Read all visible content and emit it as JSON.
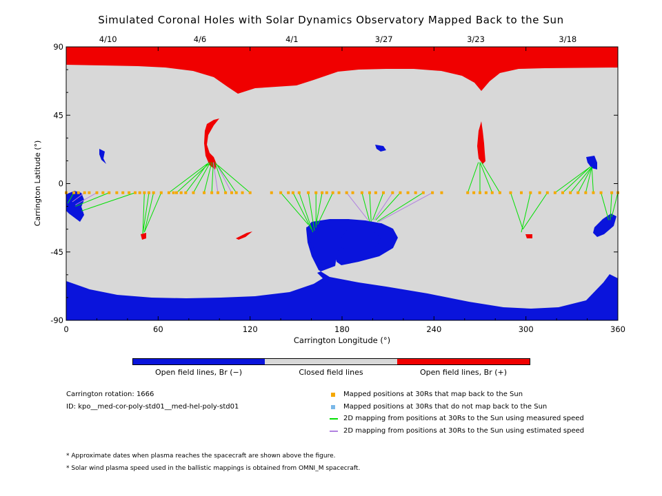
{
  "chart_data": {
    "type": "map",
    "title": "Simulated Coronal Holes with Solar Dynamics Observatory Mapped Back to the Sun",
    "xlabel": "Carrington Longitude (°)",
    "ylabel": "Carrington Latitude (°)",
    "xlim": [
      0,
      360
    ],
    "ylim": [
      -90,
      90
    ],
    "xticks": [
      0,
      60,
      120,
      180,
      240,
      300,
      360
    ],
    "yticks": [
      90,
      45,
      0,
      -45,
      -90
    ],
    "top_axis_dates": [
      {
        "label": "4/10",
        "lon": 30
      },
      {
        "label": "4/6",
        "lon": 90
      },
      {
        "label": "4/1",
        "lon": 150
      },
      {
        "label": "3/27",
        "lon": 210
      },
      {
        "label": "3/23",
        "lon": 270
      },
      {
        "label": "3/18",
        "lon": 330
      }
    ],
    "colors": {
      "open_negative": "#0a14dc",
      "closed": "#d8d8d8",
      "open_positive": "#f00000",
      "mapped": "#f5a800",
      "unmapped": "#7ab8e8",
      "measured": "#00e000",
      "estimated": "#b080e0"
    },
    "colorbar": [
      "Open field lines, Br (−)",
      "Closed field lines",
      "Open field lines, Br (+)"
    ],
    "mapped_positions_lat": -6,
    "mapped_positions_lon": [
      0,
      5,
      8,
      12,
      15,
      20,
      24,
      28,
      33,
      37,
      41,
      45,
      48,
      51,
      54,
      57,
      62,
      67,
      70,
      72,
      75,
      78,
      83,
      90,
      95,
      99,
      104,
      108,
      111,
      115,
      120,
      134,
      140,
      145,
      148,
      152,
      158,
      163,
      167,
      170,
      174,
      178,
      183,
      187,
      193,
      198,
      202,
      207,
      213,
      218,
      223,
      228,
      233,
      239,
      245,
      262,
      266,
      270,
      274,
      278,
      283,
      290,
      297,
      303,
      309,
      314,
      319,
      324,
      329,
      334,
      339,
      344,
      349,
      356,
      360
    ],
    "field_lines": [
      {
        "from": [
          12,
          -6
        ],
        "to": [
          4,
          -12
        ],
        "speed": "estimated"
      },
      {
        "from": [
          20,
          -6
        ],
        "to": [
          6,
          -14
        ],
        "speed": "estimated"
      },
      {
        "from": [
          28,
          -6
        ],
        "to": [
          6,
          -15
        ],
        "speed": "measured"
      },
      {
        "from": [
          45,
          -6
        ],
        "to": [
          10,
          -18
        ],
        "speed": "measured"
      },
      {
        "from": [
          5,
          -6
        ],
        "to": [
          1,
          -13
        ],
        "speed": "measured"
      },
      {
        "from": [
          51,
          -6
        ],
        "to": [
          50,
          -33
        ],
        "speed": "measured"
      },
      {
        "from": [
          54,
          -6
        ],
        "to": [
          50,
          -33
        ],
        "speed": "measured"
      },
      {
        "from": [
          57,
          -6
        ],
        "to": [
          51,
          -32
        ],
        "speed": "measured"
      },
      {
        "from": [
          62,
          -6
        ],
        "to": [
          51,
          -32
        ],
        "speed": "measured"
      },
      {
        "from": [
          67,
          -6
        ],
        "to": [
          92,
          13
        ],
        "speed": "measured"
      },
      {
        "from": [
          72,
          -6
        ],
        "to": [
          93,
          13
        ],
        "speed": "measured"
      },
      {
        "from": [
          78,
          -6
        ],
        "to": [
          93,
          14
        ],
        "speed": "measured"
      },
      {
        "from": [
          83,
          -6
        ],
        "to": [
          94,
          14
        ],
        "speed": "measured"
      },
      {
        "from": [
          90,
          -6
        ],
        "to": [
          95,
          14
        ],
        "speed": "measured"
      },
      {
        "from": [
          95,
          -6
        ],
        "to": [
          96,
          14
        ],
        "speed": "measured"
      },
      {
        "from": [
          99,
          -6
        ],
        "to": [
          96,
          14
        ],
        "speed": "estimated"
      },
      {
        "from": [
          104,
          -6
        ],
        "to": [
          97,
          14
        ],
        "speed": "measured"
      },
      {
        "from": [
          108,
          -6
        ],
        "to": [
          98,
          13
        ],
        "speed": "estimated"
      },
      {
        "from": [
          111,
          -6
        ],
        "to": [
          98,
          13
        ],
        "speed": "measured"
      },
      {
        "from": [
          120,
          -6
        ],
        "to": [
          99,
          12
        ],
        "speed": "measured"
      },
      {
        "from": [
          140,
          -6
        ],
        "to": [
          158,
          -27
        ],
        "speed": "measured"
      },
      {
        "from": [
          148,
          -6
        ],
        "to": [
          160,
          -30
        ],
        "speed": "measured"
      },
      {
        "from": [
          152,
          -6
        ],
        "to": [
          161,
          -32
        ],
        "speed": "measured"
      },
      {
        "from": [
          158,
          -6
        ],
        "to": [
          162,
          -31
        ],
        "speed": "measured"
      },
      {
        "from": [
          163,
          -6
        ],
        "to": [
          163,
          -29
        ],
        "speed": "measured"
      },
      {
        "from": [
          167,
          -6
        ],
        "to": [
          163,
          -27
        ],
        "speed": "measured"
      },
      {
        "from": [
          174,
          -6
        ],
        "to": [
          164,
          -27
        ],
        "speed": "measured"
      },
      {
        "from": [
          183,
          -6
        ],
        "to": [
          197,
          -24
        ],
        "speed": "estimated"
      },
      {
        "from": [
          193,
          -6
        ],
        "to": [
          198,
          -25
        ],
        "speed": "measured"
      },
      {
        "from": [
          198,
          -6
        ],
        "to": [
          199,
          -25
        ],
        "speed": "measured"
      },
      {
        "from": [
          207,
          -6
        ],
        "to": [
          200,
          -24
        ],
        "speed": "measured"
      },
      {
        "from": [
          213,
          -6
        ],
        "to": [
          201,
          -24
        ],
        "speed": "estimated"
      },
      {
        "from": [
          218,
          -6
        ],
        "to": [
          202,
          -24
        ],
        "speed": "measured"
      },
      {
        "from": [
          233,
          -6
        ],
        "to": [
          203,
          -25
        ],
        "speed": "measured"
      },
      {
        "from": [
          239,
          -6
        ],
        "to": [
          204,
          -25
        ],
        "speed": "estimated"
      },
      {
        "from": [
          262,
          -6
        ],
        "to": [
          269,
          14
        ],
        "speed": "measured"
      },
      {
        "from": [
          270,
          -6
        ],
        "to": [
          270,
          14
        ],
        "speed": "measured"
      },
      {
        "from": [
          278,
          -6
        ],
        "to": [
          270,
          14
        ],
        "speed": "measured"
      },
      {
        "from": [
          283,
          -6
        ],
        "to": [
          271,
          14
        ],
        "speed": "measured"
      },
      {
        "from": [
          290,
          -6
        ],
        "to": [
          298,
          -30
        ],
        "speed": "measured"
      },
      {
        "from": [
          303,
          -6
        ],
        "to": [
          297,
          -32
        ],
        "speed": "measured"
      },
      {
        "from": [
          314,
          -6
        ],
        "to": [
          298,
          -30
        ],
        "speed": "measured"
      },
      {
        "from": [
          319,
          -6
        ],
        "to": [
          342,
          11
        ],
        "speed": "measured"
      },
      {
        "from": [
          324,
          -6
        ],
        "to": [
          342,
          11
        ],
        "speed": "measured"
      },
      {
        "from": [
          329,
          -6
        ],
        "to": [
          343,
          11
        ],
        "speed": "measured"
      },
      {
        "from": [
          334,
          -6
        ],
        "to": [
          343,
          11
        ],
        "speed": "measured"
      },
      {
        "from": [
          339,
          -6
        ],
        "to": [
          343,
          11
        ],
        "speed": "measured"
      },
      {
        "from": [
          344,
          -6
        ],
        "to": [
          343,
          11
        ],
        "speed": "measured"
      },
      {
        "from": [
          349,
          -6
        ],
        "to": [
          354,
          -24
        ],
        "speed": "measured"
      },
      {
        "from": [
          356,
          -6
        ],
        "to": [
          355,
          -24
        ],
        "speed": "measured"
      },
      {
        "from": [
          360,
          -6
        ],
        "to": [
          356,
          -22
        ],
        "speed": "measured"
      }
    ]
  },
  "info": {
    "carrington_rotation": "Carrington rotation: 1666",
    "id": "ID: kpo__med-cor-poly-std01__med-hel-poly-std01"
  },
  "legend": {
    "mapped": "Mapped positions at 30Rs that map back to the Sun",
    "unmapped": "Mapped positions at 30Rs that do not map back to the Sun",
    "measured": "2D mapping from positions at 30Rs to the Sun using measured speed",
    "estimated": "2D mapping from positions at 30Rs to the Sun using estimated speed"
  },
  "notes": [
    "* Approximate dates when plasma reaches the spacecraft are shown above the figure.",
    "* Solar wind plasma speed used in the ballistic mappings is obtained from OMNI_M spacecraft."
  ]
}
